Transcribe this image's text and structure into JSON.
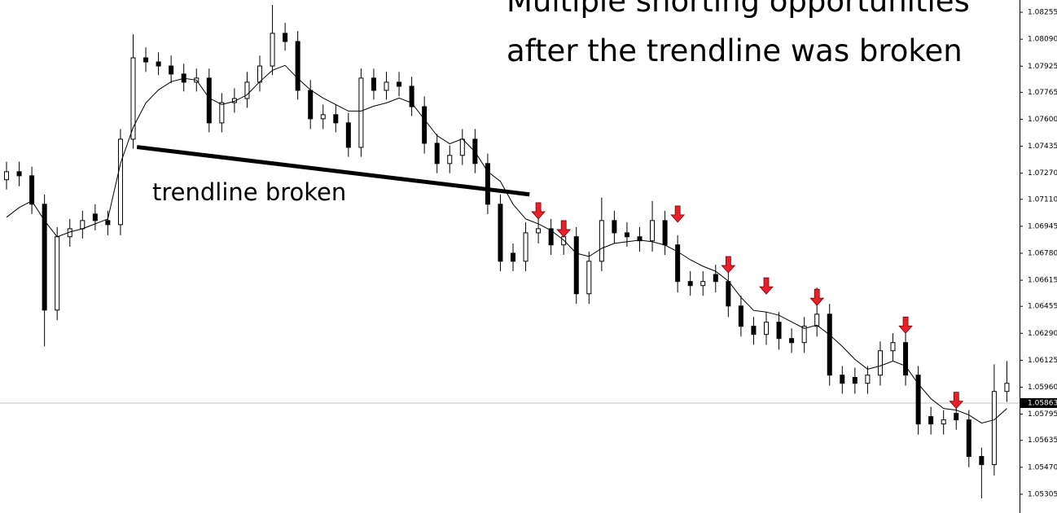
{
  "chart_data": {
    "type": "candlestick",
    "annotations": [
      "Multiple shorting opportunities",
      "after the trendline was broken",
      "trendline broken"
    ],
    "open": [
      1.0723,
      1.07279,
      1.07254,
      1.0708,
      1.06432,
      1.06881,
      1.0693,
      1.0702,
      1.0698,
      1.06955,
      1.07478,
      1.07976,
      1.07951,
      1.07926,
      1.07877,
      1.07827,
      1.07852,
      1.07578,
      1.07702,
      1.07727,
      1.07827,
      1.07926,
      1.08126,
      1.08076,
      1.07777,
      1.07603,
      1.07628,
      1.07578,
      1.07428,
      1.07852,
      1.07777,
      1.07827,
      1.07802,
      1.07677,
      1.07453,
      1.07329,
      1.07379,
      1.07478,
      1.07329,
      1.0708,
      1.0678,
      1.06731,
      1.06905,
      1.0693,
      1.06831,
      1.06881,
      1.06532,
      1.06731,
      1.0698,
      1.06905,
      1.06881,
      1.06856,
      1.0698,
      1.06831,
      1.06607,
      1.06582,
      1.0665,
      1.06607,
      1.06457,
      1.06333,
      1.06283,
      1.06358,
      1.06258,
      1.06233,
      1.06333,
      1.06407,
      1.06034,
      1.0602,
      1.05984,
      1.06034,
      1.06183,
      1.06233,
      1.06034,
      1.0578,
      1.05735,
      1.058,
      1.0576,
      1.05536,
      1.05486,
      1.05934
    ],
    "high": [
      1.0734,
      1.0734,
      1.0731,
      1.0714,
      1.0694,
      1.0699,
      1.0704,
      1.0708,
      1.0704,
      1.0754,
      1.0812,
      1.0804,
      1.0801,
      1.0799,
      1.0794,
      1.0791,
      1.0791,
      1.0776,
      1.0779,
      1.0789,
      1.0799,
      1.083,
      1.0819,
      1.0814,
      1.0784,
      1.0769,
      1.0769,
      1.0764,
      1.0791,
      1.0791,
      1.0789,
      1.0789,
      1.0786,
      1.0774,
      1.0751,
      1.0744,
      1.0754,
      1.0754,
      1.0739,
      1.0714,
      1.0684,
      1.0697,
      1.0699,
      1.0699,
      1.0694,
      1.0694,
      1.0679,
      1.0712,
      1.0704,
      1.0697,
      1.0694,
      1.071,
      1.0704,
      1.0689,
      1.0667,
      1.0667,
      1.0671,
      1.0667,
      1.0652,
      1.0639,
      1.0642,
      1.0642,
      1.0632,
      1.0639,
      1.0657,
      1.0647,
      1.0609,
      1.0608,
      1.0609,
      1.0624,
      1.0629,
      1.0629,
      1.0609,
      1.0584,
      1.0582,
      1.0586,
      1.0582,
      1.0559,
      1.061,
      1.0612
    ],
    "low": [
      1.0717,
      1.0719,
      1.0702,
      1.0621,
      1.0637,
      1.0682,
      1.0687,
      1.0692,
      1.0689,
      1.0689,
      1.0742,
      1.0789,
      1.0787,
      1.0782,
      1.0777,
      1.0777,
      1.0752,
      1.0752,
      1.0764,
      1.0767,
      1.0777,
      1.0787,
      1.0802,
      1.0772,
      1.0754,
      1.0754,
      1.0752,
      1.0737,
      1.0737,
      1.0772,
      1.0772,
      1.0774,
      1.0762,
      1.0739,
      1.0727,
      1.0727,
      1.0732,
      1.0727,
      1.0702,
      1.0667,
      1.0667,
      1.0667,
      1.0684,
      1.0677,
      1.0677,
      1.0647,
      1.0647,
      1.0667,
      1.0684,
      1.0682,
      1.0679,
      1.0679,
      1.0677,
      1.0654,
      1.0652,
      1.0652,
      1.0654,
      1.0639,
      1.0627,
      1.0622,
      1.0622,
      1.0619,
      1.0617,
      1.0617,
      1.0627,
      1.0597,
      1.0592,
      1.0592,
      1.0592,
      1.0597,
      1.0612,
      1.0597,
      1.0567,
      1.0567,
      1.0567,
      1.057,
      1.0547,
      1.0528,
      1.0542,
      1.0587
    ],
    "close": [
      1.07279,
      1.07254,
      1.0708,
      1.06432,
      1.06881,
      1.0693,
      1.0698,
      1.0698,
      1.06955,
      1.07478,
      1.07976,
      1.07951,
      1.07926,
      1.07877,
      1.07827,
      1.07852,
      1.07578,
      1.07702,
      1.07727,
      1.07827,
      1.07926,
      1.08126,
      1.08076,
      1.07777,
      1.07603,
      1.07628,
      1.07578,
      1.07428,
      1.07852,
      1.07777,
      1.07827,
      1.07802,
      1.07677,
      1.07453,
      1.07329,
      1.07379,
      1.07478,
      1.07329,
      1.0708,
      1.06731,
      1.06731,
      1.06905,
      1.0693,
      1.06831,
      1.06881,
      1.06532,
      1.06731,
      1.0698,
      1.06905,
      1.06881,
      1.06856,
      1.0698,
      1.06831,
      1.06607,
      1.06582,
      1.06607,
      1.06607,
      1.06457,
      1.06333,
      1.06283,
      1.06358,
      1.06258,
      1.06233,
      1.06333,
      1.06407,
      1.06034,
      1.05984,
      1.05984,
      1.06034,
      1.06183,
      1.06233,
      1.06034,
      1.05735,
      1.05735,
      1.0576,
      1.0576,
      1.05536,
      1.05486,
      1.05934,
      1.05984
    ],
    "moving_average": [
      1.07,
      1.0706,
      1.071,
      1.0698,
      1.0688,
      1.0691,
      1.0693,
      1.0696,
      1.0699,
      1.0733,
      1.0755,
      1.077,
      1.0778,
      1.0783,
      1.0785,
      1.0784,
      1.0773,
      1.0769,
      1.0771,
      1.0775,
      1.0783,
      1.079,
      1.0793,
      1.0785,
      1.0778,
      1.0773,
      1.0769,
      1.0765,
      1.0765,
      1.0768,
      1.077,
      1.0773,
      1.077,
      1.076,
      1.075,
      1.0745,
      1.0748,
      1.074,
      1.0728,
      1.0722,
      1.0708,
      1.0699,
      1.0696,
      1.0692,
      1.0686,
      1.0678,
      1.0676,
      1.0681,
      1.0684,
      1.0685,
      1.0686,
      1.0685,
      1.0683,
      1.0679,
      1.0674,
      1.067,
      1.0667,
      1.0661,
      1.0651,
      1.0643,
      1.0642,
      1.064,
      1.0636,
      1.0632,
      1.0634,
      1.0628,
      1.0621,
      1.0613,
      1.0607,
      1.0609,
      1.0612,
      1.0609,
      1.0598,
      1.0589,
      1.0583,
      1.0582,
      1.0579,
      1.0574,
      1.0576,
      1.0583
    ],
    "color": "#000000",
    "ma_color": "#000000",
    "arrow_color": "#e8202a",
    "arrows": [
      {
        "index": 42,
        "value": 1.0699
      },
      {
        "index": 44,
        "value": 1.0688
      },
      {
        "index": 53,
        "value": 1.0697
      },
      {
        "index": 57,
        "value": 1.0666
      },
      {
        "index": 60,
        "value": 1.0653
      },
      {
        "index": 64,
        "value": 1.0646
      },
      {
        "index": 71,
        "value": 1.0629
      },
      {
        "index": 75,
        "value": 1.0583
      }
    ],
    "trendline": {
      "start": [
        10.3,
        1.0743
      ],
      "end": [
        41.3,
        1.0714
      ]
    },
    "last_price": 1.05863,
    "ylim": [
      1.0519,
      1.0833
    ],
    "yticks": [
      1.08255,
      {
        "value": 1.0809,
        "label": "1.08090"
      },
      1.07925,
      1.07765,
      {
        "value": 1.076,
        "label": "1.07600"
      },
      1.07435,
      {
        "value": 1.0727,
        "label": "1.07270"
      },
      {
        "value": 1.0711,
        "label": "1.07110"
      },
      1.06945,
      {
        "value": 1.0678,
        "label": "1.06780"
      },
      1.06615,
      1.06455,
      {
        "value": 1.0629,
        "label": "1.06290"
      },
      1.06125,
      {
        "value": 1.0596,
        "label": "1.05960"
      },
      1.05795,
      1.05635,
      {
        "value": 1.0547,
        "label": "1.05470"
      },
      1.05305
    ]
  }
}
